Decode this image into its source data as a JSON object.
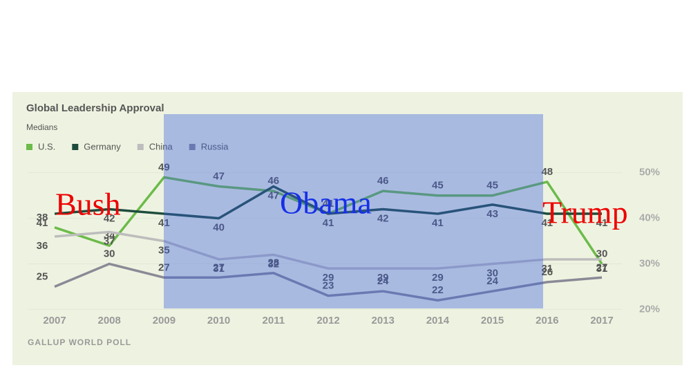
{
  "chart_data": {
    "type": "line",
    "title": "Global Leadership Approval",
    "subtitle": "Medians",
    "source": "GALLUP WORLD POLL",
    "categories": [
      "2007",
      "2008",
      "2009",
      "2010",
      "2011",
      "2012",
      "2013",
      "2014",
      "2015",
      "2016",
      "2017"
    ],
    "series": [
      {
        "name": "U.S.",
        "color": "#6cbb4a",
        "values": [
          38,
          34,
          49,
          47,
          46,
          41,
          46,
          45,
          45,
          48,
          30
        ]
      },
      {
        "name": "Germany",
        "color": "#1e4c3c",
        "values": [
          41,
          42,
          41,
          40,
          47,
          41,
          42,
          41,
          43,
          41,
          41
        ]
      },
      {
        "name": "China",
        "color": "#bdbdbd",
        "values": [
          36,
          37,
          35,
          31,
          32,
          29,
          29,
          29,
          30,
          31,
          31
        ]
      },
      {
        "name": "Russia",
        "color": "#8a8a96",
        "values": [
          25,
          30,
          27,
          27,
          28,
          23,
          24,
          22,
          24,
          26,
          27
        ]
      }
    ],
    "ylim": [
      19,
      53
    ],
    "yticks": [
      {
        "value": 20,
        "label": "20%"
      },
      {
        "value": 30,
        "label": "30%"
      },
      {
        "value": 40,
        "label": "40%"
      },
      {
        "value": 50,
        "label": "50%"
      }
    ],
    "annotations": [
      "Bush",
      "Obama",
      "Trump"
    ]
  }
}
